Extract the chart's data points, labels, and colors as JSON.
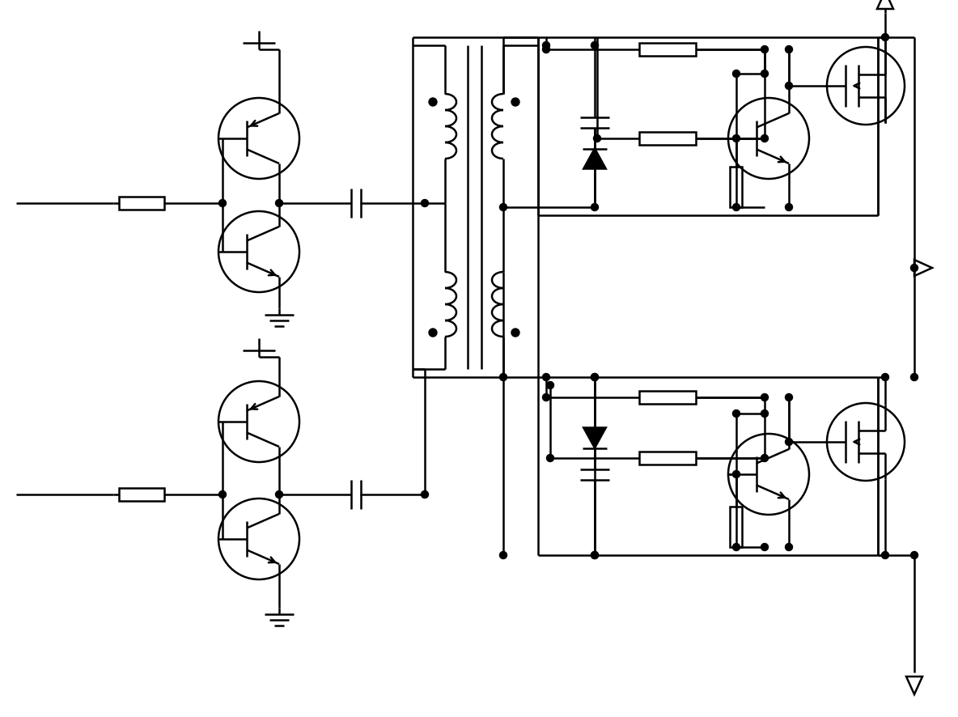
{
  "bg": "#ffffff",
  "lc": "#000000",
  "lw": 1.8,
  "fw": 11.84,
  "fh": 8.87,
  "dpi": 100
}
